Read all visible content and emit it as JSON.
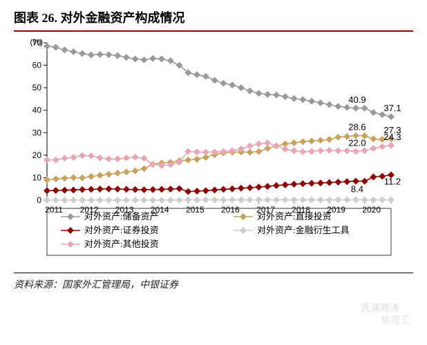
{
  "title": "图表 26. 对外金融资产构成情况",
  "chart": {
    "type": "line",
    "y_unit": "(%)",
    "ylim": [
      0,
      70
    ],
    "ytick_step": 10,
    "yticks": [
      0,
      10,
      20,
      30,
      40,
      50,
      60,
      70
    ],
    "x_year_start": 2011,
    "x_year_end": 2020,
    "x_quarters_per_year": 4,
    "x_labels": [
      "2011",
      "2012",
      "2013",
      "2014",
      "2015",
      "2016",
      "2017",
      "2018",
      "2019",
      "2020"
    ],
    "label_fontsize": 12,
    "data_label_fontsize": 13,
    "line_width": 1.6,
    "marker": "diamond",
    "marker_size": 5,
    "background_color": "#ffffff",
    "axis_color": "#000000",
    "tick_len": 5,
    "series": [
      {
        "name": "对外资产:储备资产",
        "color": "#999999",
        "values": [
          68.5,
          68.0,
          66.8,
          66.0,
          65.2,
          64.6,
          64.8,
          64.7,
          64.3,
          63.5,
          62.8,
          62.4,
          63.0,
          62.8,
          62.0,
          60.0,
          56.7,
          55.8,
          55.0,
          53.3,
          52.0,
          51.2,
          50.0,
          48.6,
          47.5,
          47.0,
          46.8,
          46.0,
          45.2,
          44.7,
          44.0,
          43.3,
          42.5,
          41.7,
          41.2,
          40.9,
          40.9,
          39.0,
          38.0,
          37.1
        ],
        "end_labels": {
          "2019": "40.9",
          "2020": "37.1"
        }
      },
      {
        "name": "对外资产:直接投资",
        "color": "#c6a35d",
        "values": [
          9.0,
          9.4,
          9.7,
          10.0,
          9.9,
          10.5,
          11.0,
          11.5,
          12.0,
          12.5,
          13.0,
          14.0,
          16.0,
          16.5,
          16.8,
          17.5,
          17.8,
          18.2,
          19.0,
          20.2,
          21.0,
          21.3,
          21.4,
          21.3,
          21.6,
          23.0,
          24.0,
          25.0,
          25.5,
          26.0,
          26.3,
          26.6,
          27.0,
          28.0,
          28.3,
          28.7,
          28.6,
          27.2,
          27.0,
          27.3
        ],
        "end_labels": {
          "2019": "28.6",
          "2020": "27.3"
        }
      },
      {
        "name": "对外资产:证券投资",
        "color": "#8b0000",
        "values": [
          4.2,
          4.3,
          4.4,
          4.5,
          4.7,
          4.8,
          4.9,
          5.0,
          4.9,
          4.8,
          4.7,
          4.6,
          4.7,
          4.8,
          4.9,
          5.1,
          3.8,
          4.0,
          4.2,
          4.5,
          4.8,
          5.0,
          5.3,
          5.5,
          5.8,
          6.1,
          6.5,
          6.8,
          7.1,
          7.3,
          7.5,
          7.6,
          7.8,
          8.0,
          8.2,
          8.4,
          8.4,
          10.3,
          10.6,
          11.2
        ],
        "end_labels": {
          "2019": "8.4",
          "2020": "11.2"
        }
      },
      {
        "name": "对外资产:金融衍生工具",
        "color": "#cccccc",
        "values": [
          0,
          0,
          0,
          0,
          0,
          0,
          0,
          0,
          0,
          0,
          0,
          0,
          0,
          0,
          0,
          0,
          0.1,
          0.1,
          0.1,
          0.1,
          0.1,
          0.1,
          0.1,
          0.1,
          0.1,
          0.1,
          0.1,
          0.1,
          0.1,
          0.1,
          0.1,
          0.1,
          0.1,
          0.1,
          0.1,
          0.1,
          0.1,
          0.1,
          0.1,
          0.1
        ]
      },
      {
        "name": "对外资产:其他投资",
        "color": "#e6a6b3",
        "values": [
          17.8,
          17.9,
          18.6,
          19.0,
          19.8,
          19.7,
          18.8,
          18.3,
          18.3,
          18.8,
          19.1,
          18.6,
          15.8,
          15.4,
          15.8,
          16.9,
          21.7,
          21.4,
          21.3,
          21.4,
          21.6,
          22.0,
          22.8,
          24.1,
          25.0,
          25.4,
          24.2,
          22.7,
          22.0,
          21.5,
          21.7,
          22.0,
          22.2,
          22.0,
          21.9,
          21.7,
          22.0,
          23.0,
          23.8,
          24.3
        ],
        "end_labels": {
          "2019": "22.0",
          "2020": "24.3"
        }
      }
    ],
    "legend_layout": {
      "rows": 3,
      "cols": 2,
      "index": [
        0,
        1,
        2,
        3,
        4
      ]
    }
  },
  "source_label": "资料来源：国家外汇管理局，中银证券",
  "watermark1": "凭澜观涛",
  "watermark2": "格隆汇"
}
